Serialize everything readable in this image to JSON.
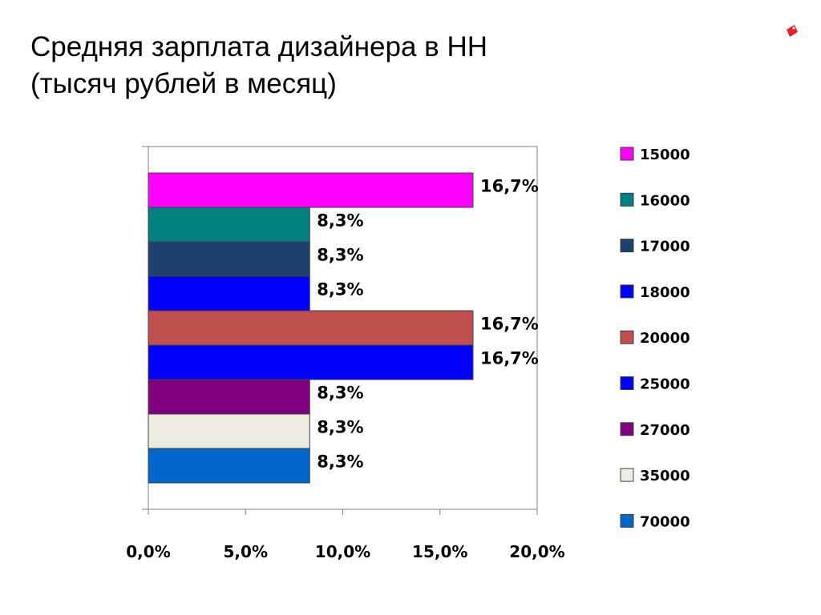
{
  "slide": {
    "title_line1": "Средняя зарплата дизайнера в НН",
    "title_line2": "(тысяч рублей в месяц)"
  },
  "logo": {
    "icon": "red-tag-icon",
    "color": "#e8222a"
  },
  "chart_data": {
    "type": "bar",
    "orientation": "horizontal",
    "grouping": "clustered",
    "series": [
      {
        "name": "15000",
        "value": 16.7,
        "label": "16,7%",
        "color": "#ff00ff"
      },
      {
        "name": "16000",
        "value": 8.3,
        "label": "8,3%",
        "color": "#008080"
      },
      {
        "name": "17000",
        "value": 8.3,
        "label": "8,3%",
        "color": "#1f3f6f"
      },
      {
        "name": "18000",
        "value": 8.3,
        "label": "8,3%",
        "color": "#0000ff"
      },
      {
        "name": "20000",
        "value": 16.7,
        "label": "16,7%",
        "color": "#c0504d"
      },
      {
        "name": "25000",
        "value": 16.7,
        "label": "16,7%",
        "color": "#0000ff"
      },
      {
        "name": "27000",
        "value": 8.3,
        "label": "8,3%",
        "color": "#800080"
      },
      {
        "name": "35000",
        "value": 8.3,
        "label": "8,3%",
        "color": "#eeece1"
      },
      {
        "name": "70000",
        "value": 8.3,
        "label": "8,3%",
        "color": "#0066cc"
      }
    ],
    "xlim": [
      0,
      20
    ],
    "x_ticks": [
      0,
      5,
      10,
      15,
      20
    ],
    "x_tick_labels": [
      "0,0%",
      "5,0%",
      "10,0%",
      "15,0%",
      "20,0%"
    ],
    "grid": false,
    "legend": "right"
  }
}
